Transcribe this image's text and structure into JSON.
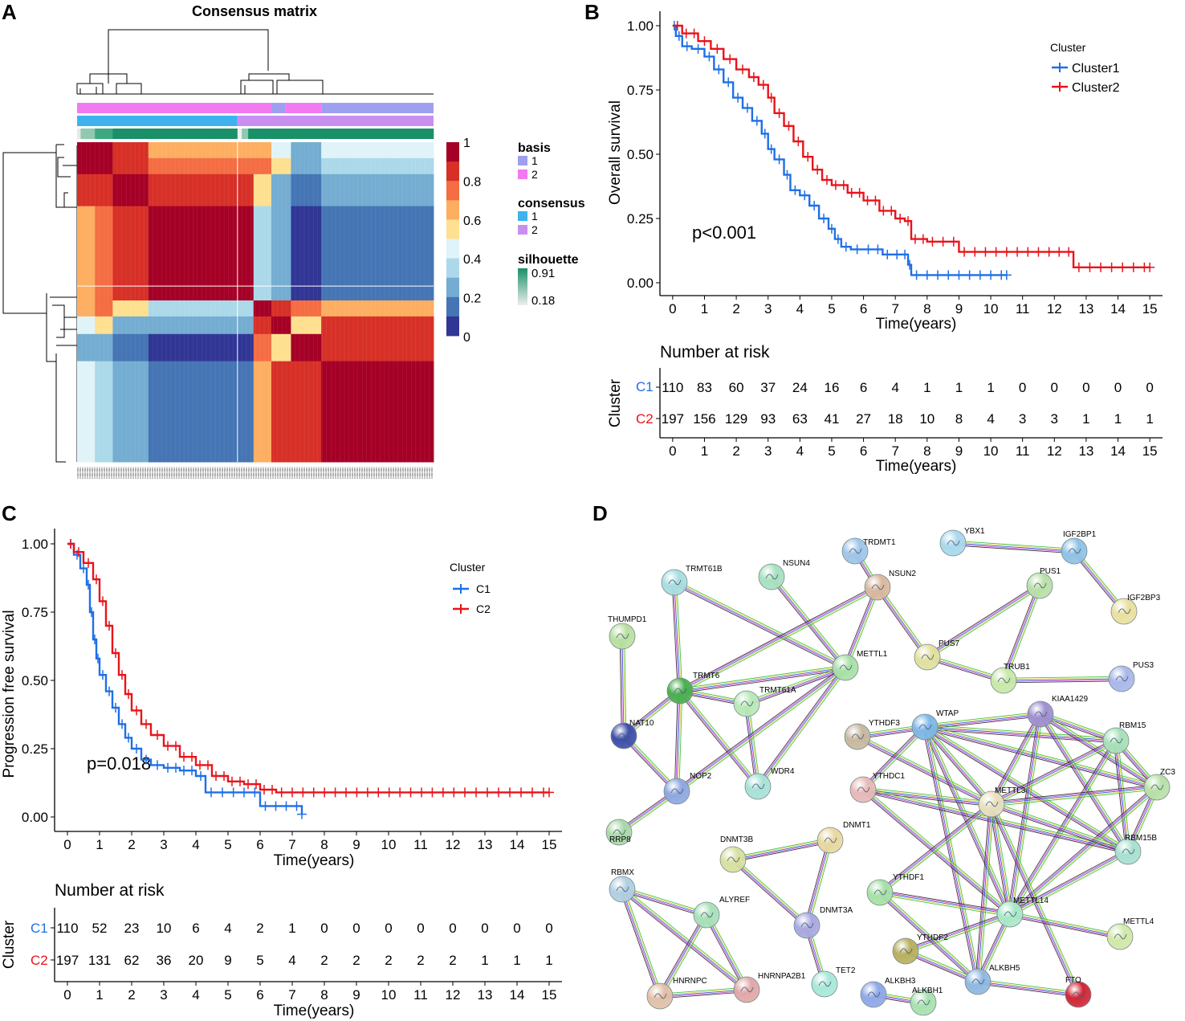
{
  "panels": {
    "A": {
      "letter": "A",
      "title": "Consensus matrix",
      "annotation_legend": {
        "basis": {
          "title": "basis",
          "levels": [
            "1",
            "2"
          ],
          "colors": [
            "#9f9ff0",
            "#f27af0"
          ]
        },
        "consensus": {
          "title": "consensus",
          "levels": [
            "1",
            "2"
          ],
          "colors": [
            "#3fb2ee",
            "#c98ff0"
          ]
        },
        "silhouette": {
          "title": "silhouette",
          "max_label": "0.91",
          "min_label": "0.18",
          "colors": [
            "#1a9068",
            "#eeeeee"
          ]
        }
      },
      "color_scale_labels": [
        "1",
        "0.8",
        "0.6",
        "0.4",
        "0.2",
        "0"
      ],
      "color_scale_colors": [
        "#a50026",
        "#d73027",
        "#f46d43",
        "#fdae61",
        "#fee090",
        "#e0f3f8",
        "#abd9e9",
        "#74add1",
        "#4575b4",
        "#313695"
      ]
    },
    "B": {
      "letter": "B",
      "ylabel": "Overall survival",
      "xlabel": "Time(years)",
      "pvalue": "p<0.001",
      "legend_title": "Cluster",
      "legend_items": [
        "Cluster1",
        "Cluster2"
      ],
      "risk_title": "Number at risk",
      "risk_ylabel": "Cluster",
      "risk_rows": [
        "C1",
        "C2"
      ]
    },
    "C": {
      "letter": "C",
      "ylabel": "Progression free survival",
      "xlabel": "Time(years)",
      "pvalue": "p=0.018",
      "legend_title": "Cluster",
      "legend_items": [
        "C1",
        "C2"
      ],
      "risk_title": "Number at risk",
      "risk_ylabel": "Cluster",
      "risk_rows": [
        "C1",
        "C2"
      ]
    },
    "D": {
      "letter": "D"
    }
  },
  "colors": {
    "cluster1": "#1f6fe6",
    "cluster2": "#e8131b"
  },
  "chart_data": [
    {
      "type": "heatmap",
      "title": "Consensus matrix",
      "block_boundaries": [
        0,
        0.05,
        0.1,
        0.2,
        0.45,
        0.495,
        0.545,
        0.6,
        0.685,
        1
      ],
      "values": [
        [
          1.0,
          0.92,
          0.88,
          0.68,
          0.62,
          0.68,
          0.48,
          0.3,
          0.48,
          0.3
        ],
        [
          0.92,
          1.0,
          0.88,
          0.72,
          0.72,
          0.72,
          0.58,
          0.25,
          0.35,
          0.25
        ],
        [
          0.88,
          0.88,
          1.0,
          0.85,
          0.85,
          0.52,
          0.3,
          0.2,
          0.22,
          0.2
        ],
        [
          0.68,
          0.72,
          0.85,
          1.0,
          1.0,
          0.4,
          0.25,
          0.05,
          0.15,
          0.1
        ],
        [
          0.62,
          0.72,
          0.85,
          1.0,
          1.0,
          0.35,
          0.3,
          0.05,
          0.15,
          0.1
        ],
        [
          0.68,
          0.72,
          0.52,
          0.4,
          0.35,
          1.0,
          0.85,
          0.75,
          0.65,
          0.65
        ],
        [
          0.48,
          0.58,
          0.3,
          0.25,
          0.3,
          0.85,
          1.0,
          0.6,
          0.8,
          0.8
        ],
        [
          0.3,
          0.25,
          0.2,
          0.05,
          0.05,
          0.75,
          0.6,
          1.0,
          0.85,
          0.85
        ],
        [
          0.48,
          0.35,
          0.22,
          0.15,
          0.15,
          0.65,
          0.8,
          0.85,
          1.0,
          0.85
        ],
        [
          0.3,
          0.25,
          0.2,
          0.1,
          0.1,
          0.65,
          0.8,
          0.85,
          0.85,
          1.0
        ]
      ],
      "color_range": [
        0,
        1
      ]
    },
    {
      "type": "line",
      "title": "",
      "xlabel": "Time(years)",
      "ylabel": "Overall survival",
      "xlim": [
        -0.4,
        15.4
      ],
      "ylim": [
        0,
        1
      ],
      "xticks": [
        0,
        1,
        2,
        3,
        4,
        5,
        6,
        7,
        8,
        9,
        10,
        11,
        12,
        13,
        14,
        15
      ],
      "yticks": [
        0,
        0.25,
        0.5,
        0.75,
        1.0
      ],
      "ytick_labels": [
        "0.00",
        "0.25",
        "0.50",
        "0.75",
        "1.00"
      ],
      "annotation": "p<0.001",
      "series": [
        {
          "name": "Cluster1",
          "x": [
            0,
            0.1,
            0.3,
            0.6,
            1.0,
            1.3,
            1.6,
            1.9,
            2.2,
            2.5,
            2.8,
            3.0,
            3.2,
            3.5,
            3.7,
            4.0,
            4.3,
            4.6,
            4.9,
            5.1,
            5.3,
            5.6,
            6.0,
            6.6,
            7.2,
            7.4,
            7.5,
            10.5
          ],
          "y": [
            1.0,
            0.96,
            0.92,
            0.91,
            0.88,
            0.83,
            0.78,
            0.72,
            0.68,
            0.63,
            0.58,
            0.52,
            0.48,
            0.42,
            0.36,
            0.34,
            0.3,
            0.25,
            0.21,
            0.17,
            0.14,
            0.13,
            0.13,
            0.11,
            0.11,
            0.07,
            0.03,
            0.03
          ]
        },
        {
          "name": "Cluster2",
          "x": [
            0,
            0.3,
            0.8,
            1.2,
            1.6,
            2.0,
            2.4,
            2.7,
            3.0,
            3.2,
            3.5,
            3.8,
            4.1,
            4.4,
            4.7,
            5.0,
            5.5,
            6.0,
            6.5,
            7.0,
            7.3,
            7.5,
            8.0,
            9.0,
            10.0,
            12.0,
            12.6,
            15.0
          ],
          "y": [
            1.0,
            0.97,
            0.94,
            0.91,
            0.87,
            0.83,
            0.8,
            0.77,
            0.72,
            0.66,
            0.61,
            0.55,
            0.49,
            0.44,
            0.4,
            0.38,
            0.35,
            0.32,
            0.28,
            0.25,
            0.24,
            0.17,
            0.16,
            0.12,
            0.12,
            0.12,
            0.06,
            0.06
          ]
        }
      ],
      "risk_table": {
        "C1": [
          110,
          83,
          60,
          37,
          24,
          16,
          6,
          4,
          1,
          1,
          1,
          0,
          0,
          0,
          0,
          0
        ],
        "C2": [
          197,
          156,
          129,
          93,
          63,
          41,
          27,
          18,
          10,
          8,
          4,
          3,
          3,
          1,
          1,
          1
        ]
      }
    },
    {
      "type": "line",
      "title": "",
      "xlabel": "Time(years)",
      "ylabel": "Progression free survival",
      "xlim": [
        -0.4,
        15.4
      ],
      "ylim": [
        0,
        1
      ],
      "xticks": [
        0,
        1,
        2,
        3,
        4,
        5,
        6,
        7,
        8,
        9,
        10,
        11,
        12,
        13,
        14,
        15
      ],
      "yticks": [
        0,
        0.25,
        0.5,
        0.75,
        1.0
      ],
      "ytick_labels": [
        "0.00",
        "0.25",
        "0.50",
        "0.75",
        "1.00"
      ],
      "annotation": "p=0.018",
      "series": [
        {
          "name": "C1",
          "x": [
            0,
            0.2,
            0.4,
            0.6,
            0.7,
            0.8,
            0.9,
            1.0,
            1.2,
            1.4,
            1.6,
            1.8,
            2.0,
            2.3,
            2.6,
            3.0,
            3.5,
            4.0,
            4.3,
            5.0,
            6.0,
            7.3
          ],
          "y": [
            1.0,
            0.96,
            0.91,
            0.85,
            0.75,
            0.65,
            0.58,
            0.52,
            0.46,
            0.4,
            0.34,
            0.29,
            0.25,
            0.21,
            0.19,
            0.18,
            0.17,
            0.15,
            0.09,
            0.09,
            0.04,
            0.01
          ]
        },
        {
          "name": "C2",
          "x": [
            0,
            0.2,
            0.5,
            0.8,
            1.0,
            1.2,
            1.4,
            1.6,
            1.8,
            2.0,
            2.3,
            2.6,
            3.0,
            3.5,
            4.0,
            4.5,
            5.0,
            5.5,
            6.0,
            6.5,
            7.5,
            12.2,
            15.0
          ],
          "y": [
            1.0,
            0.97,
            0.93,
            0.87,
            0.79,
            0.7,
            0.6,
            0.52,
            0.45,
            0.39,
            0.34,
            0.3,
            0.26,
            0.22,
            0.19,
            0.15,
            0.13,
            0.12,
            0.1,
            0.09,
            0.09,
            0.09,
            0.09
          ]
        }
      ],
      "risk_table": {
        "C1": [
          110,
          52,
          23,
          10,
          6,
          4,
          2,
          1,
          0,
          0,
          0,
          0,
          0,
          0,
          0,
          0
        ],
        "C2": [
          197,
          131,
          62,
          36,
          20,
          9,
          5,
          4,
          2,
          2,
          2,
          2,
          2,
          1,
          1,
          1
        ]
      }
    },
    {
      "type": "network",
      "nodes": [
        {
          "id": "TRDMT1",
          "color": "#9fc5e8"
        },
        {
          "id": "YBX1",
          "color": "#a9d8ec"
        },
        {
          "id": "IGF2BP1",
          "color": "#8fc2e6"
        },
        {
          "id": "TRMT61B",
          "color": "#a8dde0"
        },
        {
          "id": "NSUN4",
          "color": "#a8e0c0"
        },
        {
          "id": "NSUN2",
          "color": "#d8b8a0"
        },
        {
          "id": "PUS1",
          "color": "#b8e0a8"
        },
        {
          "id": "THUMPD1",
          "color": "#b8e0a0"
        },
        {
          "id": "IGF2BP3",
          "color": "#e8e0a0"
        },
        {
          "id": "PUS7",
          "color": "#e0e0a0"
        },
        {
          "id": "METTL1",
          "color": "#a8e0a8"
        },
        {
          "id": "TRMT6",
          "color": "#4caf50"
        },
        {
          "id": "TRMT61A",
          "color": "#b8e8b8"
        },
        {
          "id": "TRUB1",
          "color": "#c8e8a8"
        },
        {
          "id": "PUS3",
          "color": "#a8b8e8"
        },
        {
          "id": "NAT10",
          "color": "#3f4fa8"
        },
        {
          "id": "KIAA1429",
          "color": "#a090d0"
        },
        {
          "id": "YTHDF3",
          "color": "#c8b8a0"
        },
        {
          "id": "WTAP",
          "color": "#7fb8e8"
        },
        {
          "id": "RBM15",
          "color": "#a8e0b8"
        },
        {
          "id": "ZC3",
          "color": "#b8e0a8"
        },
        {
          "id": "YTHDC1",
          "color": "#e8b8b8"
        },
        {
          "id": "NOP2",
          "color": "#8fa8e0"
        },
        {
          "id": "WDR4",
          "color": "#a8e0d8"
        },
        {
          "id": "METTL3",
          "color": "#e8e0c0"
        },
        {
          "id": "RRP8",
          "color": "#a8d8a8"
        },
        {
          "id": "RBM15B",
          "color": "#a8e0d0"
        },
        {
          "id": "DNMT1",
          "color": "#e8d8a0"
        },
        {
          "id": "DNMT3B",
          "color": "#d8e0a0"
        },
        {
          "id": "RBMX",
          "color": "#b0cfe0"
        },
        {
          "id": "ALYREF",
          "color": "#a8e0b8"
        },
        {
          "id": "YTHDF1",
          "color": "#a8e0a8"
        },
        {
          "id": "DNMT3A",
          "color": "#a8a8e0"
        },
        {
          "id": "METTL14",
          "color": "#a8e8c8"
        },
        {
          "id": "METTL4",
          "color": "#d0e8a8"
        },
        {
          "id": "YTHDF2",
          "color": "#b8b060"
        },
        {
          "id": "ALKBH5",
          "color": "#90b8e0"
        },
        {
          "id": "HNRNPC",
          "color": "#e0c0a8"
        },
        {
          "id": "HNRNPA2B1",
          "color": "#e0a8a8"
        },
        {
          "id": "TET2",
          "color": "#a8e8d8"
        },
        {
          "id": "ALKBH3",
          "color": "#8fa8e8"
        },
        {
          "id": "ALKBH1",
          "color": "#a8e0b0"
        },
        {
          "id": "FTO",
          "color": "#d02838"
        }
      ],
      "edges": [
        [
          "TRMT61B",
          "TRMT6"
        ],
        [
          "TRMT61B",
          "METTL1"
        ],
        [
          "NSUN4",
          "METTL1"
        ],
        [
          "TRDMT1",
          "NSUN2"
        ],
        [
          "NSUN2",
          "METTL1"
        ],
        [
          "NSUN2",
          "TRMT6"
        ],
        [
          "NSUN2",
          "PUS7"
        ],
        [
          "YBX1",
          "IGF2BP1"
        ],
        [
          "IGF2BP1",
          "IGF2BP3"
        ],
        [
          "PUS1",
          "PUS7"
        ],
        [
          "PUS1",
          "TRUB1"
        ],
        [
          "PUS7",
          "TRUB1"
        ],
        [
          "TRUB1",
          "PUS3"
        ],
        [
          "THUMPD1",
          "NAT10"
        ],
        [
          "TRMT6",
          "TRMT61A"
        ],
        [
          "TRMT6",
          "METTL1"
        ],
        [
          "TRMT6",
          "NOP2"
        ],
        [
          "TRMT6",
          "WDR4"
        ],
        [
          "TRMT6",
          "NAT10"
        ],
        [
          "TRMT61A",
          "METTL1"
        ],
        [
          "TRMT61A",
          "WDR4"
        ],
        [
          "METTL1",
          "WDR4"
        ],
        [
          "METTL1",
          "NOP2"
        ],
        [
          "NAT10",
          "NOP2"
        ],
        [
          "NOP2",
          "RRP8"
        ],
        [
          "YTHDF3",
          "WTAP"
        ],
        [
          "YTHDF3",
          "METTL3"
        ],
        [
          "WTAP",
          "KIAA1429"
        ],
        [
          "WTAP",
          "RBM15"
        ],
        [
          "WTAP",
          "ZC3"
        ],
        [
          "WTAP",
          "METTL3"
        ],
        [
          "WTAP",
          "RBM15B"
        ],
        [
          "WTAP",
          "METTL14"
        ],
        [
          "WTAP",
          "YTHDC1"
        ],
        [
          "WTAP",
          "ALKBH5"
        ],
        [
          "KIAA1429",
          "RBM15"
        ],
        [
          "KIAA1429",
          "ZC3"
        ],
        [
          "KIAA1429",
          "METTL3"
        ],
        [
          "KIAA1429",
          "RBM15B"
        ],
        [
          "KIAA1429",
          "METTL14"
        ],
        [
          "RBM15",
          "ZC3"
        ],
        [
          "RBM15",
          "METTL3"
        ],
        [
          "RBM15",
          "RBM15B"
        ],
        [
          "RBM15",
          "METTL14"
        ],
        [
          "ZC3",
          "METTL3"
        ],
        [
          "ZC3",
          "RBM15B"
        ],
        [
          "ZC3",
          "METTL14"
        ],
        [
          "YTHDC1",
          "METTL3"
        ],
        [
          "YTHDC1",
          "RBM15B"
        ],
        [
          "YTHDC1",
          "METTL14"
        ],
        [
          "METTL3",
          "RBM15B"
        ],
        [
          "METTL3",
          "METTL14"
        ],
        [
          "METTL3",
          "ALKBH5"
        ],
        [
          "METTL3",
          "FTO"
        ],
        [
          "METTL3",
          "YTHDF1"
        ],
        [
          "RBM15B",
          "METTL14"
        ],
        [
          "METTL14",
          "YTHDF1"
        ],
        [
          "METTL14",
          "YTHDF2"
        ],
        [
          "METTL14",
          "ALKBH5"
        ],
        [
          "METTL14",
          "METTL4"
        ],
        [
          "YTHDF1",
          "ALKBH5"
        ],
        [
          "YTHDF2",
          "ALKBH5"
        ],
        [
          "ALKBH5",
          "FTO"
        ],
        [
          "ALKBH3",
          "ALKBH1"
        ],
        [
          "DNMT3B",
          "DNMT1"
        ],
        [
          "DNMT3B",
          "DNMT3A"
        ],
        [
          "DNMT1",
          "DNMT3A"
        ],
        [
          "DNMT3A",
          "TET2"
        ],
        [
          "RBMX",
          "ALYREF"
        ],
        [
          "RBMX",
          "HNRNPC"
        ],
        [
          "RBMX",
          "HNRNPA2B1"
        ],
        [
          "ALYREF",
          "HNRNPC"
        ],
        [
          "ALYREF",
          "HNRNPA2B1"
        ],
        [
          "HNRNPC",
          "HNRNPA2B1"
        ]
      ]
    }
  ]
}
